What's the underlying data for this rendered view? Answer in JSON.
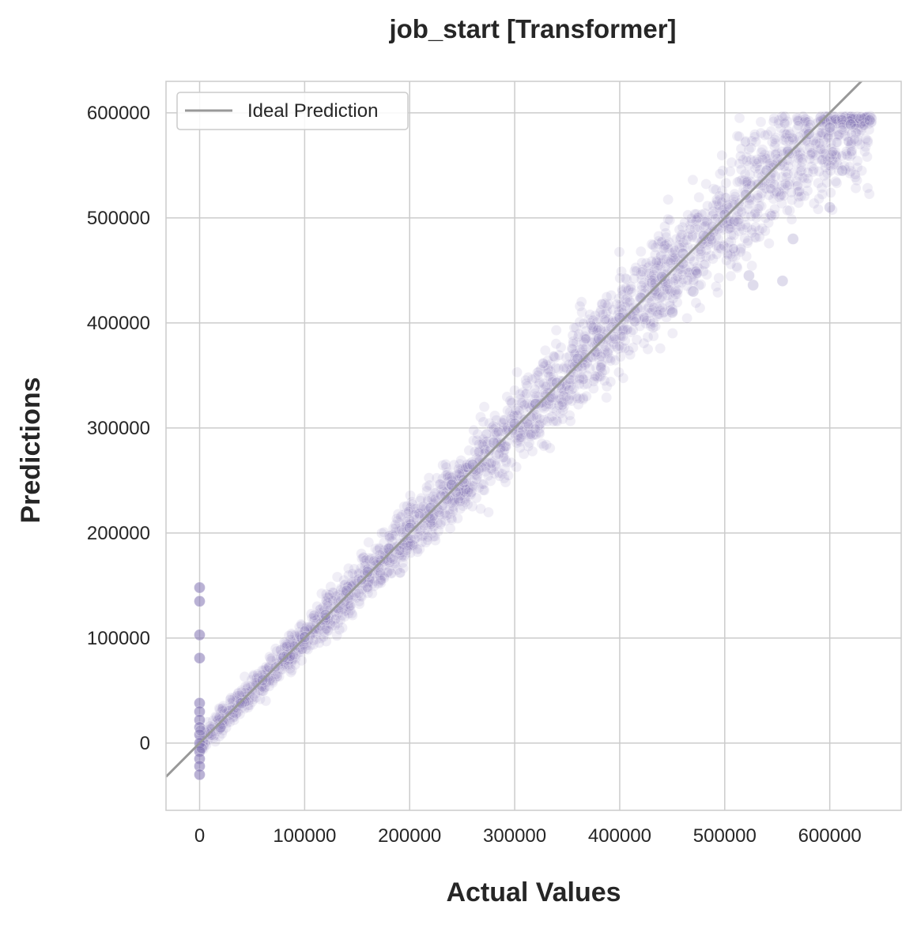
{
  "chart_data": {
    "type": "scatter",
    "title": "job_start [Transformer]",
    "xlabel": "Actual Values",
    "ylabel": "Predictions",
    "xlim": [
      -32000,
      668000
    ],
    "ylim": [
      -64000,
      630000
    ],
    "xticks": [
      0,
      100000,
      200000,
      300000,
      400000,
      500000,
      600000
    ],
    "xtick_labels": [
      "0",
      "100000",
      "200000",
      "300000",
      "400000",
      "500000",
      "600000"
    ],
    "yticks": [
      0,
      100000,
      200000,
      300000,
      400000,
      500000,
      600000
    ],
    "ytick_labels": [
      "0",
      "100000",
      "200000",
      "300000",
      "400000",
      "500000",
      "600000"
    ],
    "grid": true,
    "legend": {
      "position": "top-left",
      "entries": [
        {
          "label": "Ideal Prediction",
          "color": "#999999"
        }
      ]
    },
    "ideal_line": {
      "label": "Ideal Prediction",
      "slope": 1,
      "intercept": 0,
      "color": "#999999"
    },
    "colors": {
      "points": "#8172b3",
      "grid": "#cccccc",
      "axes_frame": "#cccccc",
      "text": "#262626"
    },
    "series": [
      {
        "name": "points",
        "alpha": 0.15,
        "description_points": "dense cloud along y = x from 0 to ~640000, spread widening with x; predictions cap near 595000",
        "points": [
          [
            0,
            148000
          ],
          [
            0,
            135000
          ],
          [
            0,
            103000
          ],
          [
            0,
            81000
          ],
          [
            0,
            38000
          ],
          [
            0,
            30000
          ],
          [
            0,
            22000
          ],
          [
            0,
            15000
          ],
          [
            0,
            8000
          ],
          [
            0,
            0
          ],
          [
            0,
            -8000
          ],
          [
            0,
            -15000
          ],
          [
            0,
            -22000
          ],
          [
            0,
            -30000
          ],
          [
            1000,
            12000
          ],
          [
            2000,
            -5000
          ],
          [
            20000,
            15000
          ],
          [
            40000,
            38000
          ],
          [
            60000,
            60000
          ],
          [
            80000,
            82000
          ],
          [
            100000,
            101000
          ],
          [
            120000,
            122000
          ],
          [
            140000,
            145000
          ],
          [
            160000,
            163000
          ],
          [
            180000,
            185000
          ],
          [
            200000,
            205000
          ],
          [
            220000,
            224000
          ],
          [
            240000,
            246000
          ],
          [
            260000,
            265000
          ],
          [
            280000,
            286000
          ],
          [
            300000,
            304000
          ],
          [
            320000,
            323000
          ],
          [
            340000,
            343000
          ],
          [
            360000,
            366000
          ],
          [
            380000,
            385000
          ],
          [
            400000,
            405000
          ],
          [
            420000,
            424000
          ],
          [
            440000,
            444000
          ],
          [
            460000,
            466000
          ],
          [
            480000,
            483000
          ],
          [
            500000,
            503000
          ],
          [
            520000,
            522000
          ],
          [
            540000,
            545000
          ],
          [
            560000,
            563000
          ],
          [
            580000,
            580000
          ],
          [
            600000,
            586000
          ],
          [
            620000,
            589000
          ],
          [
            638000,
            593000
          ],
          [
            555000,
            440000
          ],
          [
            527000,
            436000
          ],
          [
            523000,
            445000
          ],
          [
            612000,
            545000
          ],
          [
            565000,
            480000
          ],
          [
            600000,
            510000
          ],
          [
            450000,
            410000
          ],
          [
            470000,
            430000
          ]
        ]
      }
    ]
  }
}
